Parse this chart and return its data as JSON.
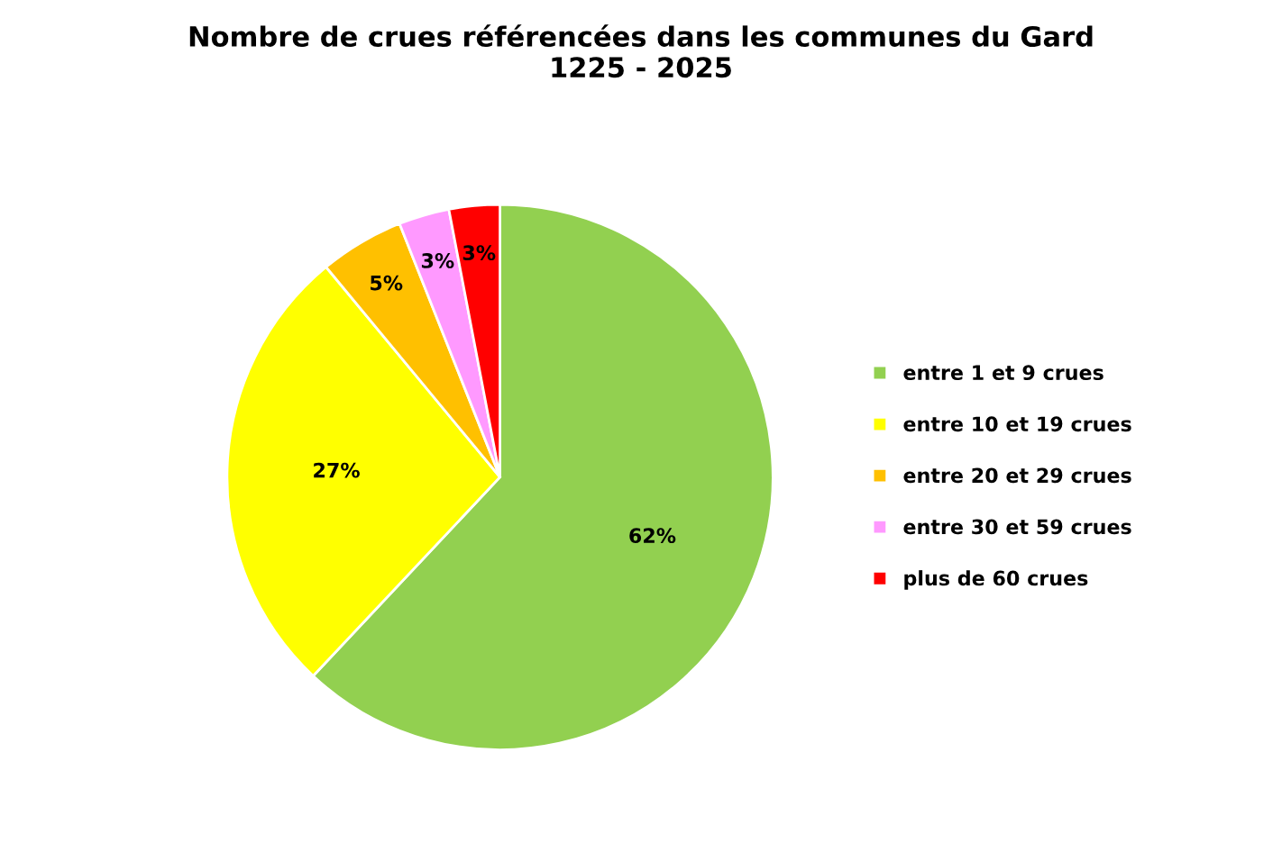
{
  "chart_data": {
    "type": "pie",
    "title": "Nombre de crues référencées dans les communes du Gard\n1225 - 2025",
    "categories": [
      "entre 1 et 9 crues",
      "entre 10 et 19 crues",
      "entre 20 et 29 crues",
      "entre 30 et 59 crues",
      "plus de 60 crues"
    ],
    "values": [
      62,
      27,
      5,
      3,
      3
    ],
    "colors": [
      "#92d050",
      "#ffff00",
      "#ffc000",
      "#ff99ff",
      "#ff0000"
    ],
    "value_labels": [
      "62%",
      "27%",
      "5%",
      "3%",
      "3%"
    ],
    "legend": "right"
  }
}
